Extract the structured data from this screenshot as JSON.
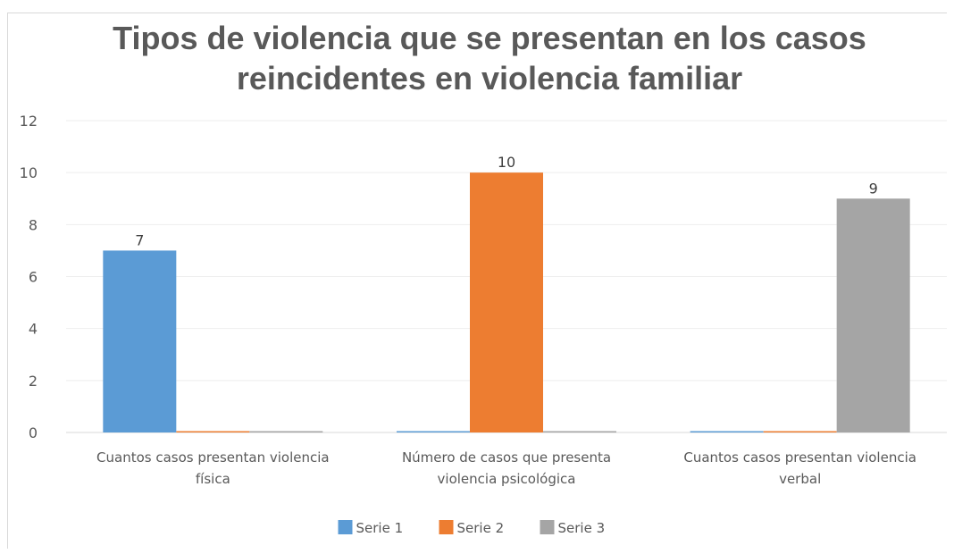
{
  "chart_data": {
    "type": "bar",
    "title": "Tipos de violencia que se presentan en los casos reincidentes  en violencia familiar",
    "title_lines": [
      "Tipos de violencia que se presentan en los casos",
      "reincidentes  en violencia familiar"
    ],
    "categories": [
      [
        "Cuantos casos presentan violencia",
        "física"
      ],
      [
        "Número de casos que presenta",
        "violencia psicológica"
      ],
      [
        "Cuantos casos presentan violencia",
        "verbal"
      ]
    ],
    "series": [
      {
        "name": "Serie 1",
        "color": "#5b9bd5",
        "values": [
          7,
          0,
          0
        ]
      },
      {
        "name": "Serie 2",
        "color": "#ed7d31",
        "values": [
          0,
          10,
          0
        ]
      },
      {
        "name": "Serie 3",
        "color": "#a5a5a5",
        "values": [
          0,
          0,
          9
        ]
      }
    ],
    "ylim": [
      0,
      12
    ],
    "yticks": [
      0,
      2,
      4,
      6,
      8,
      10,
      12
    ],
    "grid": true,
    "legend": "bottom",
    "data_labels": [
      {
        "series": 0,
        "category": 0,
        "text": "7"
      },
      {
        "series": 1,
        "category": 1,
        "text": "10"
      },
      {
        "series": 2,
        "category": 2,
        "text": "9"
      }
    ]
  }
}
